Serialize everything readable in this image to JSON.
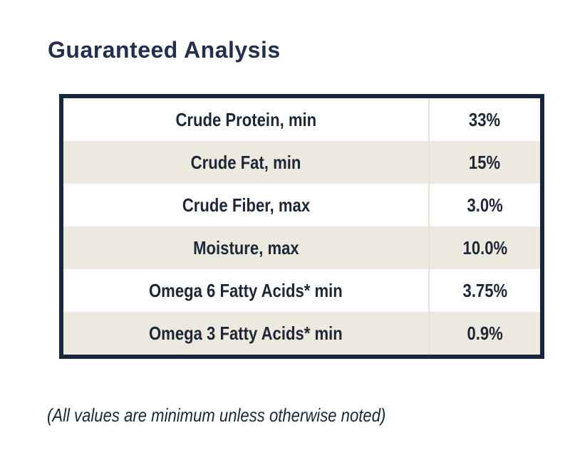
{
  "chart_data": {
    "type": "table",
    "title": "Guaranteed Analysis",
    "rows": [
      {
        "label": "Crude Protein, min",
        "value": "33%"
      },
      {
        "label": "Crude Fat, min",
        "value": "15%"
      },
      {
        "label": "Crude Fiber, max",
        "value": "3.0%"
      },
      {
        "label": "Moisture, max",
        "value": "10.0%"
      },
      {
        "label": "Omega 6 Fatty Acids* min",
        "value": "3.75%"
      },
      {
        "label": "Omega 3 Fatty Acids* min",
        "value": "0.9%"
      }
    ],
    "footnote": "(All values are minimum unless otherwise noted)",
    "layout": {
      "columns": 2,
      "column_alignment": "center",
      "row_stripe_colors": [
        "#FFFFFF",
        "#ECE9DF"
      ],
      "table_border_color": "#18253F",
      "column_divider_color": "#E4E2DB",
      "title_color": "#232F4E",
      "text_color": "#1E2737",
      "background_color": "#FFFFFF",
      "grid": "striped rows, no header row"
    }
  }
}
